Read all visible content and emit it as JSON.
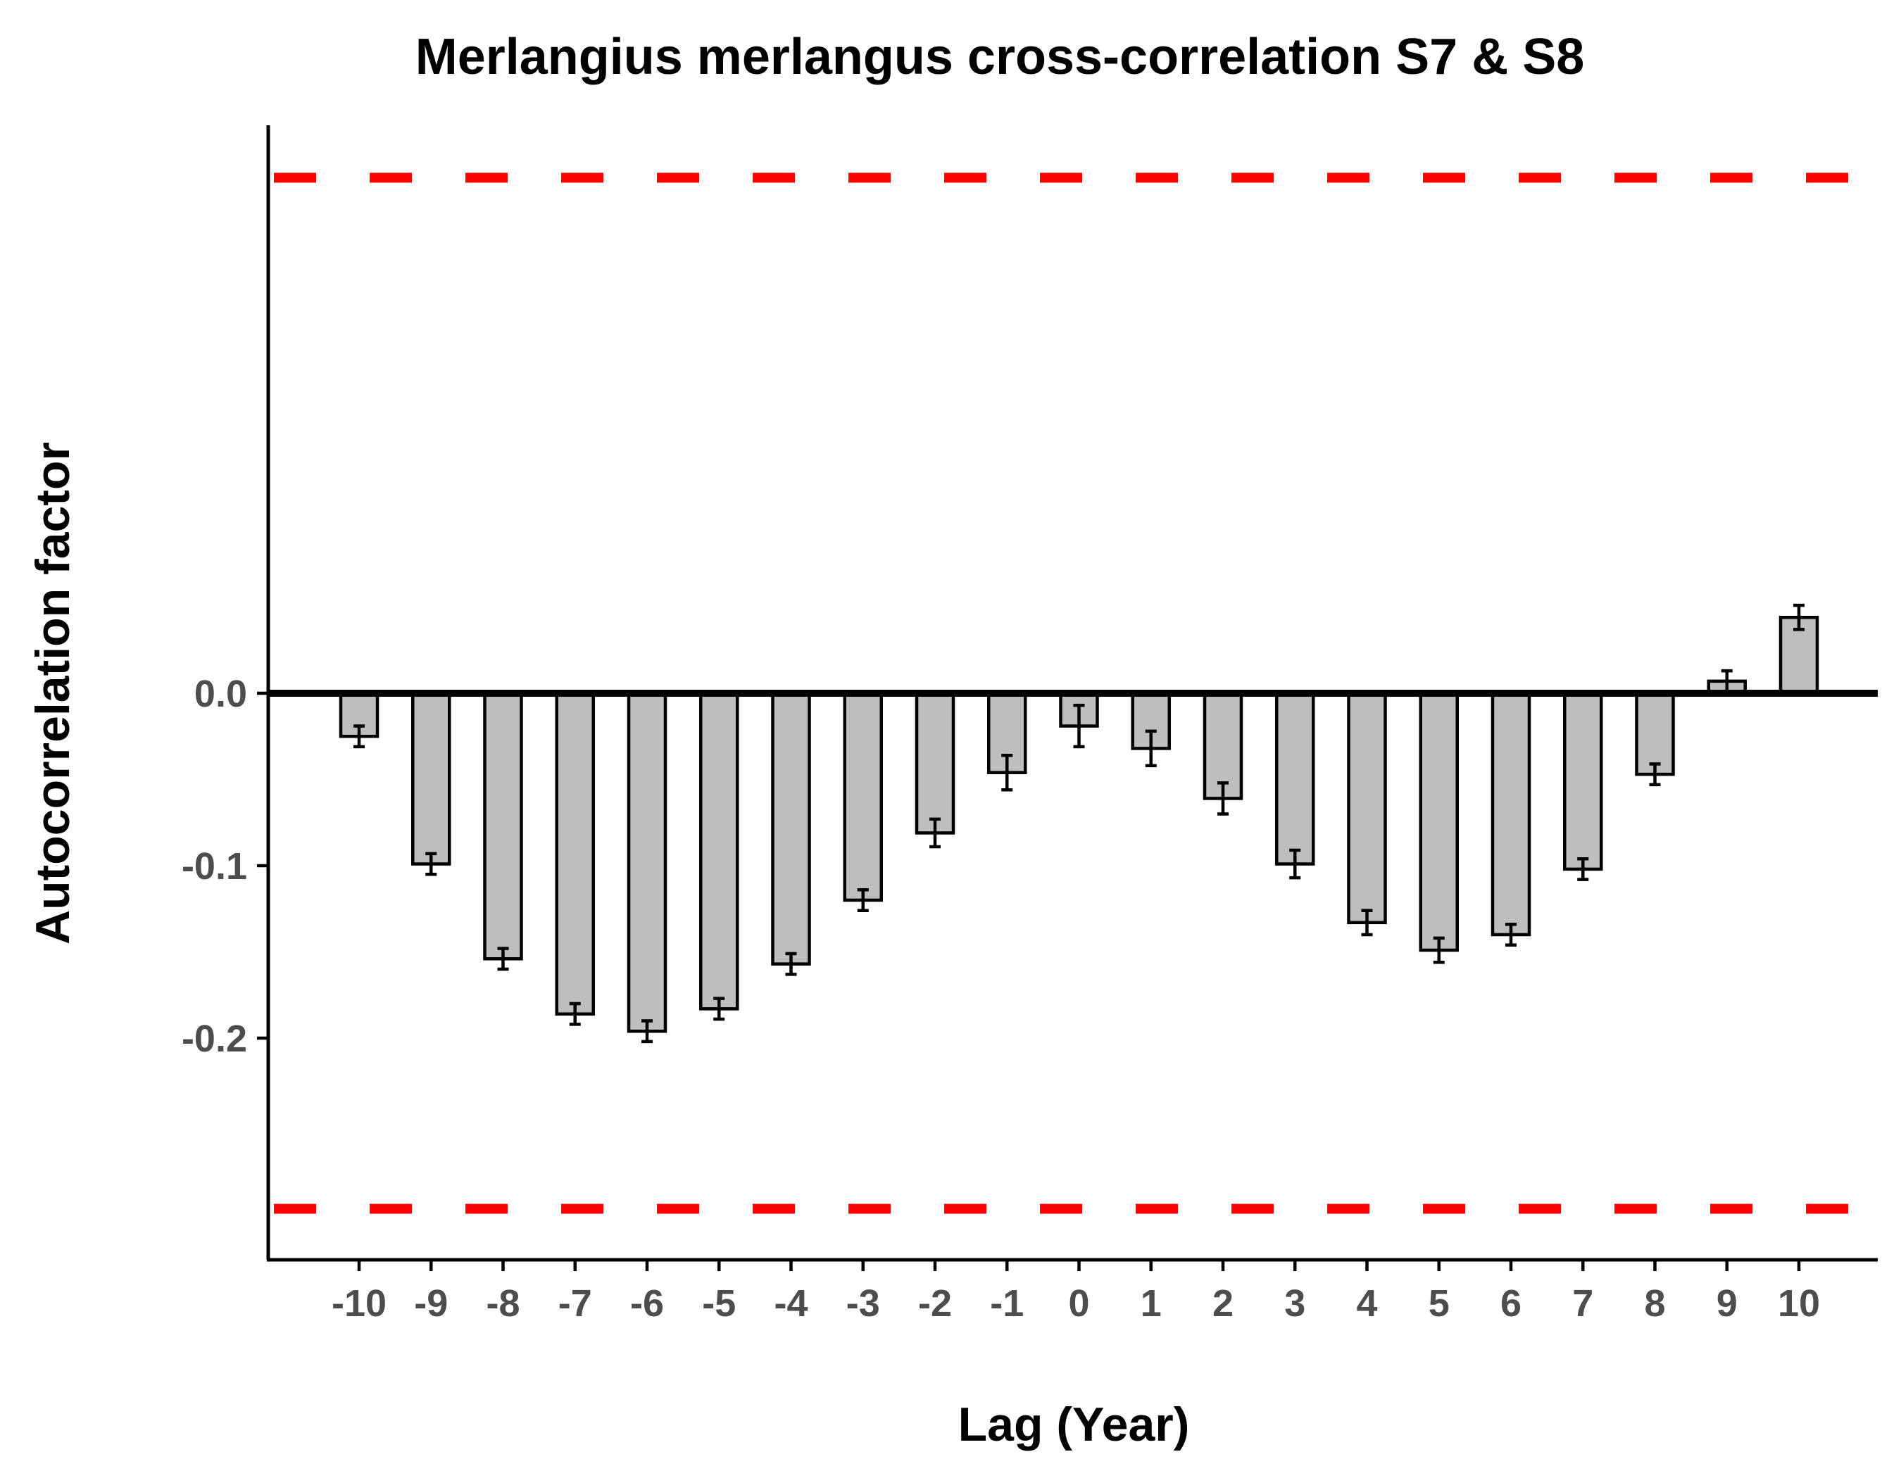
{
  "chart_data": {
    "type": "bar",
    "title": "Merlangius merlangus cross-correlation S7 & S8",
    "xlabel": "Lag (Year)",
    "ylabel": "Autocorrelation factor",
    "categories": [
      "-10",
      "-9",
      "-8",
      "-7",
      "-6",
      "-5",
      "-4",
      "-3",
      "-2",
      "-1",
      "0",
      "1",
      "2",
      "3",
      "4",
      "5",
      "6",
      "7",
      "8",
      "9",
      "10"
    ],
    "values": [
      -0.025,
      -0.099,
      -0.154,
      -0.186,
      -0.196,
      -0.183,
      -0.157,
      -0.12,
      -0.081,
      -0.046,
      -0.019,
      -0.032,
      -0.061,
      -0.099,
      -0.133,
      -0.149,
      -0.14,
      -0.102,
      -0.047,
      0.007,
      0.044
    ],
    "error": [
      0.006,
      0.006,
      0.006,
      0.006,
      0.006,
      0.006,
      0.006,
      0.006,
      0.008,
      0.01,
      0.012,
      0.01,
      0.009,
      0.008,
      0.007,
      0.007,
      0.006,
      0.006,
      0.006,
      0.006,
      0.007
    ],
    "yticks": [
      0.0,
      -0.1,
      -0.2
    ],
    "ytick_labels": [
      "0.0",
      "-0.1",
      "-0.2"
    ],
    "ylim": [
      -0.33,
      0.33
    ],
    "reference_lines": [
      0.299,
      -0.299
    ],
    "grid": false,
    "colors": {
      "bar_fill": "#bebebe",
      "bar_stroke": "#000000",
      "reference_line": "#ff0000",
      "zero_line": "#000000",
      "tick_label": "#4d4d4d"
    }
  }
}
